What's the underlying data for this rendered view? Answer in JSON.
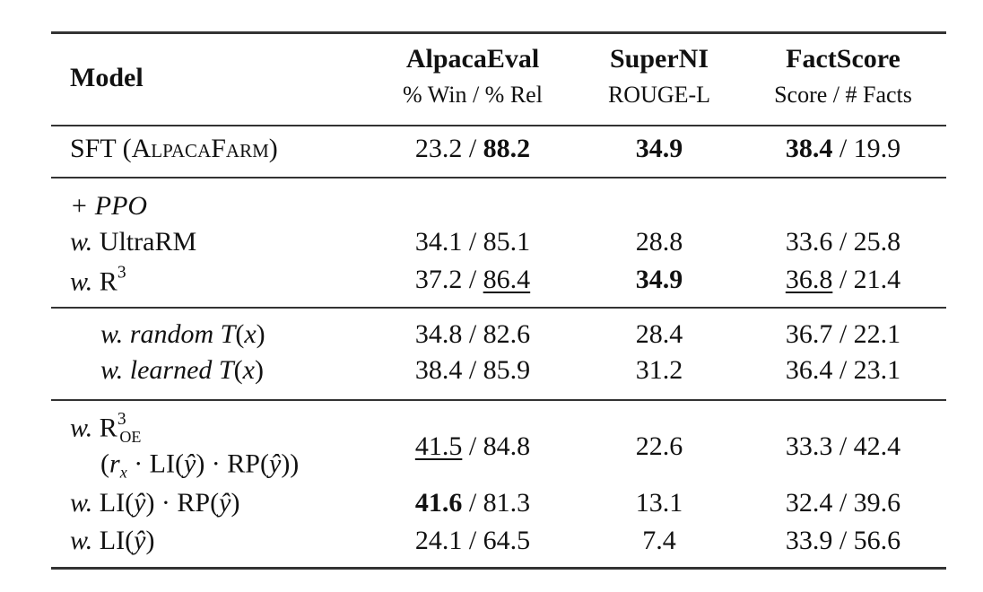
{
  "table": {
    "header": {
      "model": "Model",
      "columns": [
        {
          "name": "AlpacaEval",
          "metric": "% Win / % Rel"
        },
        {
          "name": "SuperNI",
          "metric": "ROUGE-L"
        },
        {
          "name": "FactScore",
          "metric": "Score / # Facts"
        }
      ]
    },
    "rows": [
      {
        "model": [
          {
            "t": "SFT "
          },
          {
            "t": "(AlpacaFarm)",
            "s": "sc"
          }
        ],
        "cells": [
          [
            {
              "t": "23.2 / "
            },
            {
              "t": "88.2",
              "s": "b"
            }
          ],
          [
            {
              "t": "34.9",
              "s": "b"
            }
          ],
          [
            {
              "t": "38.4",
              "s": "b"
            },
            {
              "t": " / 19.9"
            }
          ]
        ]
      },
      {
        "model": [
          {
            "t": "+ PPO",
            "s": "i"
          }
        ]
      },
      {
        "model": [
          {
            "t": "w.",
            "s": "i"
          },
          {
            "t": " UltraRM"
          }
        ],
        "cells": [
          [
            {
              "t": "34.1 / 85.1"
            }
          ],
          [
            {
              "t": "28.8"
            }
          ],
          [
            {
              "t": "33.6 / 25.8"
            }
          ]
        ]
      },
      {
        "model": [
          {
            "t": "w.",
            "s": "i"
          },
          {
            "t": " R"
          },
          {
            "t": "3",
            "s": "sup"
          }
        ],
        "cells": [
          [
            {
              "t": "37.2 / "
            },
            {
              "t": "86.4",
              "s": "u"
            }
          ],
          [
            {
              "t": "34.9",
              "s": "b"
            }
          ],
          [
            {
              "t": "36.8",
              "s": "u"
            },
            {
              "t": " / 21.4"
            }
          ]
        ]
      },
      {
        "model": [
          {
            "t": "w. random T",
            "s": "i"
          },
          {
            "t": "("
          },
          {
            "t": "x",
            "s": "i"
          },
          {
            "t": ")"
          }
        ],
        "cells": [
          [
            {
              "t": "34.8 / 82.6"
            }
          ],
          [
            {
              "t": "28.4"
            }
          ],
          [
            {
              "t": "36.7 / 22.1"
            }
          ]
        ]
      },
      {
        "model": [
          {
            "t": "w. learned T",
            "s": "i"
          },
          {
            "t": "("
          },
          {
            "t": "x",
            "s": "i"
          },
          {
            "t": ")"
          }
        ],
        "cells": [
          [
            {
              "t": "38.4 / 85.9"
            }
          ],
          [
            {
              "t": "31.2"
            }
          ],
          [
            {
              "t": "36.4 / 23.1"
            }
          ]
        ]
      },
      {
        "model": [
          {
            "t": "w.",
            "s": "i"
          },
          {
            "t": " R"
          },
          {
            "t": "3",
            "s": "sup"
          },
          {
            "t": "OE",
            "s": "sub sc back"
          }
        ],
        "model_line2": [
          {
            "t": "("
          },
          {
            "t": "r",
            "s": "i"
          },
          {
            "t": "x",
            "s": "i sub"
          },
          {
            "t": " · LI("
          },
          {
            "t": "ŷ",
            "s": "i"
          },
          {
            "t": ") · RP("
          },
          {
            "t": "ŷ",
            "s": "i"
          },
          {
            "t": "))"
          }
        ],
        "cells": [
          [
            {
              "t": "41.5",
              "s": "u"
            },
            {
              "t": " / 84.8"
            }
          ],
          [
            {
              "t": "22.6"
            }
          ],
          [
            {
              "t": "33.3 / 42.4"
            }
          ]
        ]
      },
      {
        "model": [
          {
            "t": "w.",
            "s": "i"
          },
          {
            "t": " LI("
          },
          {
            "t": "ŷ",
            "s": "i"
          },
          {
            "t": ") · RP("
          },
          {
            "t": "ŷ",
            "s": "i"
          },
          {
            "t": ")"
          }
        ],
        "cells": [
          [
            {
              "t": "41.6",
              "s": "b"
            },
            {
              "t": " / 81.3"
            }
          ],
          [
            {
              "t": "13.1"
            }
          ],
          [
            {
              "t": "32.4 / 39.6"
            }
          ]
        ]
      },
      {
        "model": [
          {
            "t": "w.",
            "s": "i"
          },
          {
            "t": " LI("
          },
          {
            "t": "ŷ",
            "s": "i"
          },
          {
            "t": ")"
          }
        ],
        "cells": [
          [
            {
              "t": "24.1 / 64.5"
            }
          ],
          [
            {
              "t": "7.4"
            }
          ],
          [
            {
              "t": "33.9 / 56.6"
            }
          ]
        ]
      }
    ]
  }
}
